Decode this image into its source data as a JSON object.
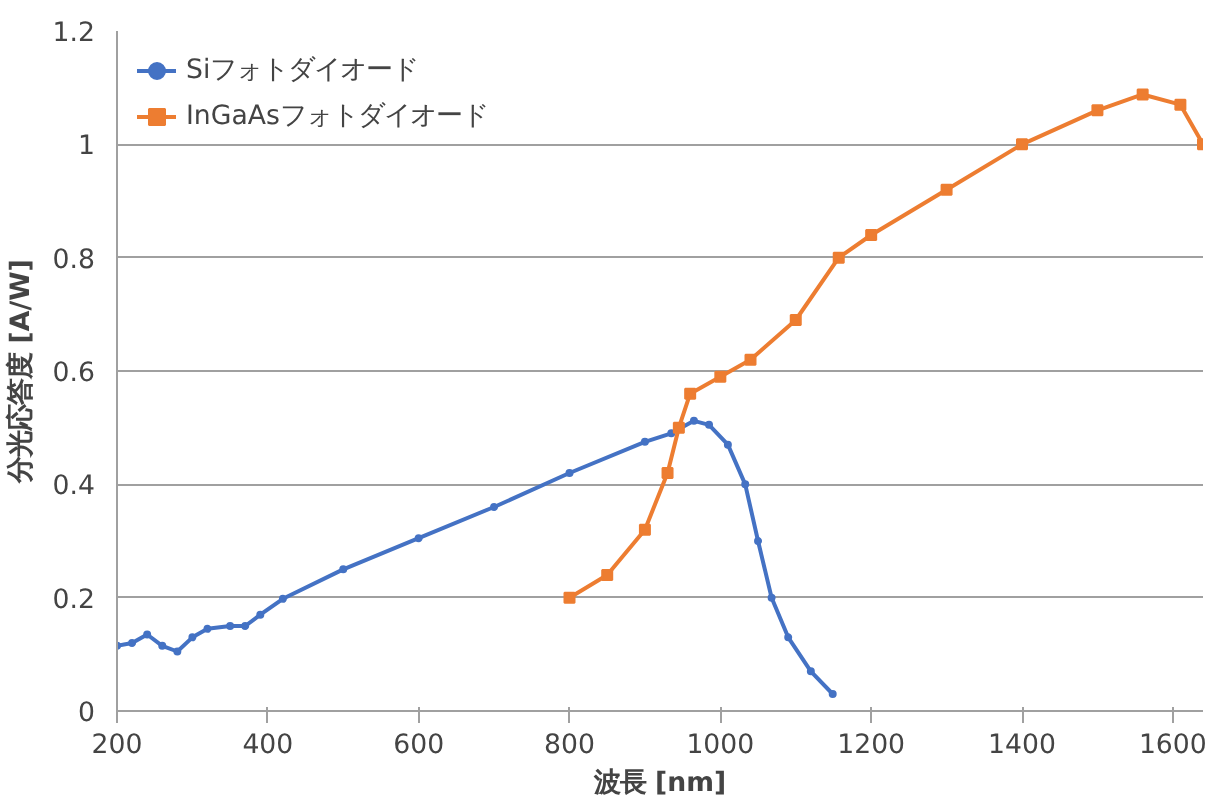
{
  "chart_data": {
    "type": "line",
    "xlabel": "波長 [nm]",
    "ylabel": "分光応答度 [A/W]",
    "xlim": [
      200,
      1640
    ],
    "xticks": [
      200,
      400,
      600,
      800,
      1000,
      1200,
      1400,
      1600
    ],
    "ylim": [
      0,
      1.2
    ],
    "yticks": [
      0,
      {
        "value": 0.2,
        "label": "0.2"
      },
      {
        "value": 0.4,
        "label": "0.4"
      },
      {
        "value": 0.6,
        "label": "0.6"
      },
      {
        "value": 0.8,
        "label": "0.8"
      },
      1,
      {
        "value": 1.2,
        "label": "1.2"
      }
    ],
    "grid": "y",
    "legend": "top left",
    "series": [
      {
        "name": "Siフォトダイオード",
        "color": "#4472c4",
        "marker": "circle",
        "x": [
          200,
          220,
          240,
          260,
          280,
          300,
          320,
          350,
          370,
          390,
          420,
          500,
          600,
          700,
          800,
          900,
          935,
          965,
          985,
          1010,
          1033,
          1050,
          1068,
          1090,
          1120,
          1149
        ],
        "values": [
          0.115,
          0.12,
          0.135,
          0.115,
          0.105,
          0.13,
          0.145,
          0.15,
          0.15,
          0.17,
          0.198,
          0.25,
          0.305,
          0.36,
          0.42,
          0.475,
          0.49,
          0.512,
          0.505,
          0.47,
          0.4,
          0.3,
          0.2,
          0.13,
          0.07,
          0.03
        ]
      },
      {
        "name": "InGaAsフォトダイオード",
        "color": "#ed7d31",
        "marker": "square",
        "x": [
          800,
          850,
          900,
          930,
          945,
          960,
          1000,
          1040,
          1100,
          1157,
          1200,
          1300,
          1400,
          1500,
          1560,
          1610,
          1640
        ],
        "values": [
          0.2,
          0.24,
          0.32,
          0.42,
          0.5,
          0.56,
          0.59,
          0.62,
          0.69,
          0.8,
          0.84,
          0.92,
          1.0,
          1.06,
          1.088,
          1.07,
          1.0
        ]
      }
    ]
  }
}
